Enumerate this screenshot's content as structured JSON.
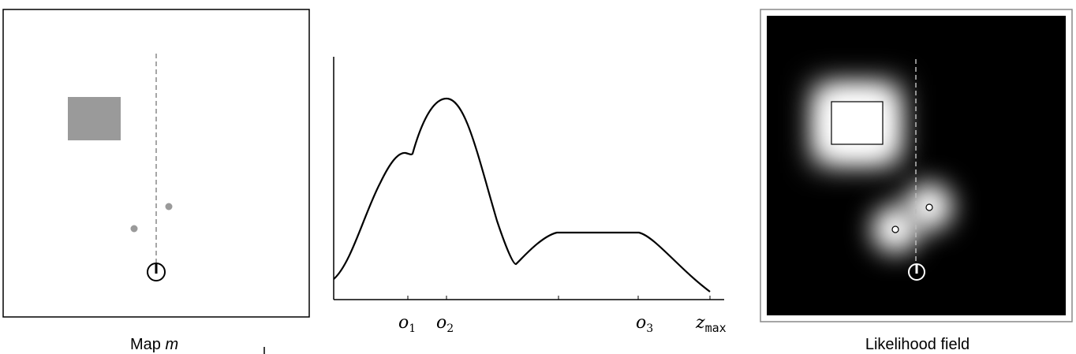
{
  "left_panel": {
    "caption": "Map",
    "caption_var": "m"
  },
  "middle_panel": {
    "labels": [
      {
        "main": "o",
        "sub": "1"
      },
      {
        "main": "o",
        "sub": "2"
      },
      {
        "main": "o",
        "sub": "3"
      },
      {
        "main": "z",
        "sub": "max"
      }
    ]
  },
  "right_panel": {
    "caption": "Likelihood field"
  },
  "colors": {
    "obstacle": "#9a9a9a",
    "field_background": "#000000",
    "field_glow": "#ffffff"
  }
}
